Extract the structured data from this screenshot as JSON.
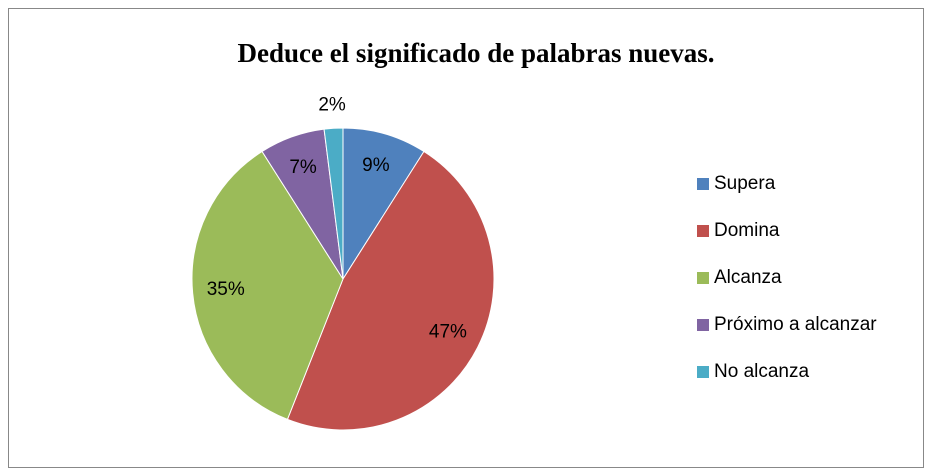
{
  "chart_data": {
    "type": "pie",
    "title": "Deduce el significado de palabras nuevas.",
    "categories": [
      "Supera",
      "Domina",
      "Alcanza",
      "Próximo a alcanzar",
      "No alcanza"
    ],
    "values": [
      9,
      47,
      35,
      7,
      2
    ],
    "value_labels": [
      "9%",
      "47%",
      "35%",
      "7%",
      "2%"
    ],
    "colors": [
      "#4f81bd",
      "#c0504d",
      "#9bbb59",
      "#8064a2",
      "#4bacc6"
    ],
    "legend": "right"
  }
}
